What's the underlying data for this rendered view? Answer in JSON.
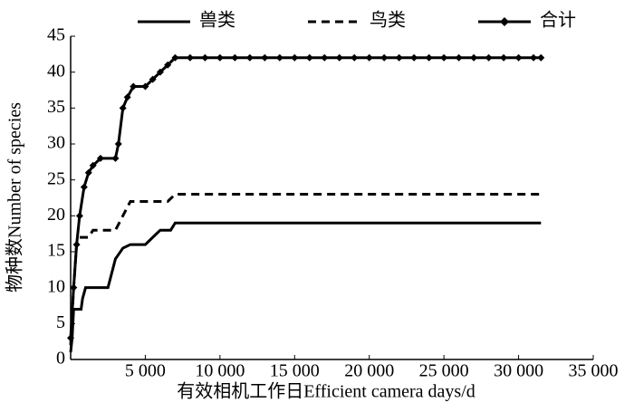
{
  "chart_data": {
    "type": "line",
    "x_label": "有效相机工作日Efficient camera days/d",
    "y_label": "物种数Number of species",
    "xlim": [
      0,
      35000
    ],
    "xticks": [
      {
        "value": 5000,
        "label": "5 000"
      },
      {
        "value": 10000,
        "label": "10 000"
      },
      {
        "value": 15000,
        "label": "15 000"
      },
      {
        "value": 20000,
        "label": "20 000"
      },
      {
        "value": 25000,
        "label": "25 000"
      },
      {
        "value": 30000,
        "label": "30 000"
      },
      {
        "value": 35000,
        "label": "35 000"
      }
    ],
    "ylim": [
      0,
      45
    ],
    "yticks": [
      0,
      5,
      10,
      15,
      20,
      25,
      30,
      35,
      40,
      45
    ],
    "series": [
      {
        "name": "兽类",
        "color": "#000000",
        "dash": "solid",
        "marker": false,
        "x": [
          0,
          100,
          200,
          700,
          800,
          1000,
          2500,
          3000,
          3500,
          4000,
          5000,
          5500,
          6000,
          6700,
          7000,
          31500
        ],
        "values": [
          1,
          3,
          7,
          7,
          8.5,
          10,
          10,
          14,
          15.5,
          16,
          16,
          17,
          18,
          18,
          19,
          19
        ]
      },
      {
        "name": "鸟类",
        "color": "#000000",
        "dash": "dashed",
        "marker": false,
        "x": [
          0,
          200,
          400,
          600,
          1200,
          1500,
          3000,
          3500,
          4000,
          6500,
          7000,
          31500
        ],
        "values": [
          2,
          10,
          16,
          17,
          17,
          18,
          18,
          20,
          22,
          22,
          23,
          23
        ]
      },
      {
        "name": "合计",
        "color": "#000000",
        "dash": "solid",
        "marker": true,
        "x": [
          0,
          200,
          400,
          600,
          900,
          1200,
          1500,
          2000,
          3000,
          3200,
          3500,
          3800,
          4200,
          5000,
          5500,
          6000,
          6500,
          7000,
          8000,
          9000,
          10000,
          11000,
          12000,
          13000,
          14000,
          15000,
          16000,
          17000,
          18000,
          19000,
          20000,
          21000,
          22000,
          23000,
          24000,
          25000,
          26000,
          27000,
          28000,
          29000,
          30000,
          31000,
          31500
        ],
        "values": [
          3,
          10,
          16,
          20,
          24,
          26,
          27,
          28,
          28,
          30,
          35,
          36.5,
          38,
          38,
          39,
          40,
          41,
          42,
          42,
          42,
          42,
          42,
          42,
          42,
          42,
          42,
          42,
          42,
          42,
          42,
          42,
          42,
          42,
          42,
          42,
          42,
          42,
          42,
          42,
          42,
          42,
          42,
          42
        ]
      }
    ]
  }
}
